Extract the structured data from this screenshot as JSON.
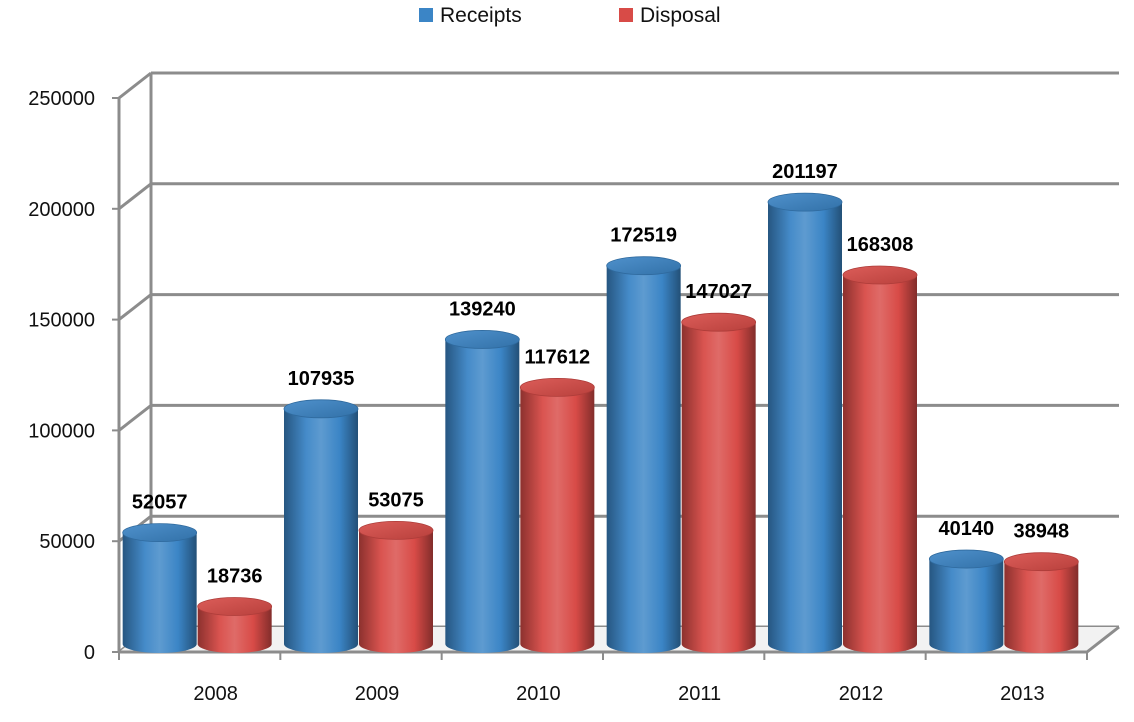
{
  "chart_data": {
    "type": "bar",
    "title": "",
    "xlabel": "",
    "ylabel": "",
    "categories": [
      "2008",
      "2009",
      "2010",
      "2011",
      "2012",
      "2013"
    ],
    "series": [
      {
        "name": "Receipts",
        "color": "#3b85c6",
        "values": [
          52057,
          107935,
          139240,
          172519,
          201197,
          40140
        ]
      },
      {
        "name": "Disposal",
        "color": "#d84b47",
        "values": [
          18736,
          53075,
          117612,
          147027,
          168308,
          38948
        ]
      }
    ],
    "ylim": [
      0,
      250000
    ],
    "yticks": [
      0,
      50000,
      100000,
      150000,
      200000,
      250000
    ],
    "grid": true,
    "legend": "top-center",
    "style": "3d-cylinder"
  }
}
